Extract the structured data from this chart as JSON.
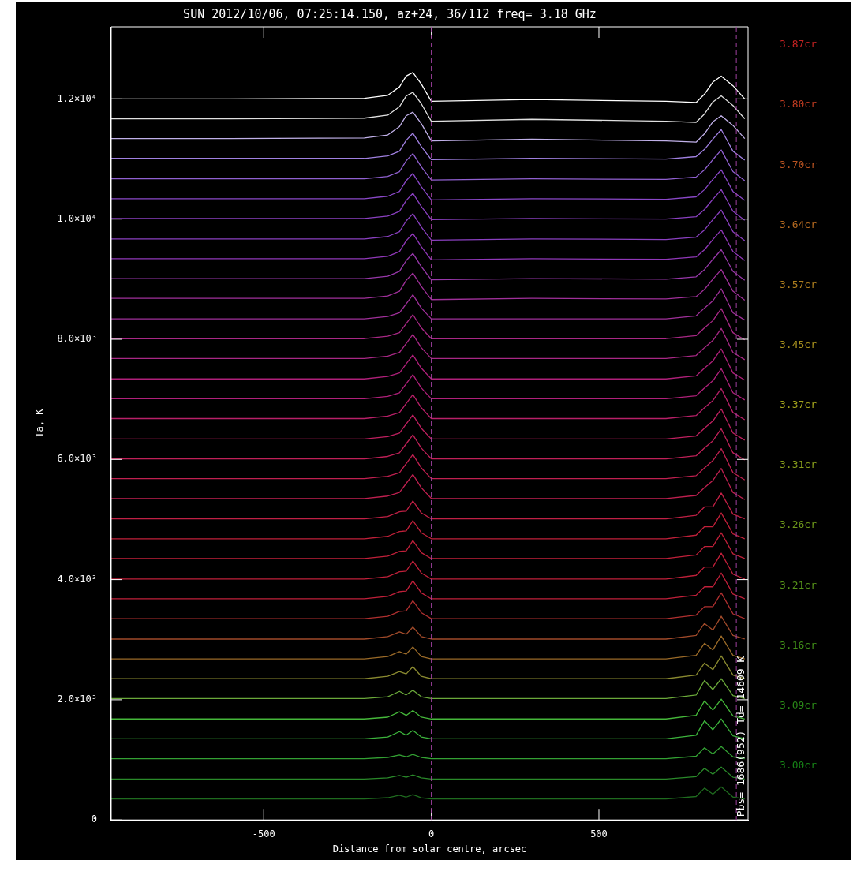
{
  "chart_data": {
    "type": "line",
    "title": "SUN 2012/10/06, 07:25:14.150, az+24, 36/112 freq= 3.18 GHz",
    "xlabel": "Distance from solar centre, arcsec",
    "ylabel": "Ta, K",
    "x": [
      -955,
      -600,
      -200,
      -130,
      -95,
      -75,
      -55,
      -30,
      0,
      300,
      700,
      790,
      815,
      840,
      865,
      900,
      935
    ],
    "xlim": [
      -955,
      945
    ],
    "xticks": [
      -500,
      0,
      500
    ],
    "ylim": [
      0,
      13200
    ],
    "yticks": [
      0,
      {
        "value": 2000,
        "label": "2.0×10³"
      },
      {
        "value": 4000,
        "label": "4.0×10³"
      },
      {
        "value": 6000,
        "label": "6.0×10³"
      },
      {
        "value": 8000,
        "label": "8.0×10³"
      },
      {
        "value": 10000,
        "label": "1.0×10⁴"
      },
      {
        "value": 12000,
        "label": "1.2×10⁴"
      }
    ],
    "grid": false,
    "legend": false,
    "marker": "none",
    "line_style": "solid",
    "ref_lines": [
      {
        "axis": "x",
        "value": 0,
        "color": "#a040a0",
        "line_style": "dashed"
      },
      {
        "axis": "x",
        "value": 910,
        "color": "#a040a0",
        "line_style": "dashed"
      }
    ],
    "annotations": [
      "3.87cr",
      "3.80cr",
      "3.70cr",
      "3.64cr",
      "3.57cr",
      "3.45cr",
      "3.37cr",
      "3.31cr",
      "3.26cr",
      "3.21cr",
      "3.16cr",
      "3.09cr",
      "3.00cr",
      "Pbs= 1686(952) Td= 14609 K"
    ],
    "series": [
      {
        "color": "#1f6b1f",
        "values": [
          350,
          350,
          350,
          370,
          410,
          380,
          420,
          370,
          350,
          350,
          350,
          390,
          530,
          430,
          550,
          380,
          350
        ]
      },
      {
        "color": "#2a8a2a",
        "values": [
          680,
          680,
          680,
          700,
          740,
          710,
          750,
          700,
          680,
          680,
          680,
          720,
          860,
          760,
          880,
          710,
          680
        ]
      },
      {
        "color": "#33a033",
        "values": [
          1020,
          1020,
          1020,
          1040,
          1080,
          1050,
          1090,
          1040,
          1020,
          1020,
          1020,
          1060,
          1200,
          1100,
          1220,
          1050,
          1020
        ]
      },
      {
        "color": "#3cb33c",
        "values": [
          1350,
          1350,
          1350,
          1380,
          1470,
          1410,
          1490,
          1380,
          1350,
          1350,
          1350,
          1410,
          1650,
          1500,
          1680,
          1400,
          1350
        ]
      },
      {
        "color": "#45b83a",
        "values": [
          1680,
          1680,
          1680,
          1710,
          1800,
          1740,
          1820,
          1710,
          1680,
          1680,
          1680,
          1740,
          1980,
          1830,
          2010,
          1730,
          1680
        ]
      },
      {
        "color": "#6aa83a",
        "values": [
          2020,
          2020,
          2020,
          2050,
          2140,
          2080,
          2160,
          2050,
          2020,
          2020,
          2020,
          2080,
          2320,
          2170,
          2350,
          2070,
          2020
        ]
      },
      {
        "color": "#8a8a30",
        "values": [
          2350,
          2350,
          2350,
          2390,
          2470,
          2430,
          2550,
          2390,
          2350,
          2350,
          2350,
          2410,
          2610,
          2500,
          2730,
          2410,
          2350
        ]
      },
      {
        "color": "#9a6a28",
        "values": [
          2680,
          2680,
          2680,
          2720,
          2800,
          2760,
          2880,
          2720,
          2680,
          2680,
          2680,
          2740,
          2940,
          2830,
          3060,
          2740,
          2680
        ]
      },
      {
        "color": "#a04a2a",
        "values": [
          3010,
          3010,
          3010,
          3050,
          3130,
          3090,
          3210,
          3050,
          3010,
          3010,
          3010,
          3070,
          3270,
          3160,
          3390,
          3070,
          3010
        ]
      },
      {
        "color": "#b03030",
        "values": [
          3350,
          3350,
          3350,
          3390,
          3470,
          3480,
          3650,
          3450,
          3350,
          3350,
          3350,
          3410,
          3550,
          3550,
          3780,
          3430,
          3350
        ]
      },
      {
        "color": "#c0203a",
        "values": [
          3680,
          3680,
          3680,
          3720,
          3800,
          3810,
          3980,
          3780,
          3680,
          3680,
          3680,
          3740,
          3880,
          3880,
          4110,
          3760,
          3680
        ]
      },
      {
        "color": "#c0203a",
        "values": [
          4010,
          4010,
          4010,
          4050,
          4130,
          4140,
          4310,
          4110,
          4010,
          4010,
          4010,
          4070,
          4210,
          4210,
          4440,
          4090,
          4010
        ]
      },
      {
        "color": "#c0203a",
        "values": [
          4350,
          4350,
          4350,
          4390,
          4470,
          4480,
          4650,
          4450,
          4350,
          4350,
          4350,
          4410,
          4550,
          4550,
          4780,
          4430,
          4350
        ]
      },
      {
        "color": "#c0203a",
        "values": [
          4680,
          4680,
          4680,
          4720,
          4800,
          4810,
          4980,
          4780,
          4680,
          4680,
          4680,
          4740,
          4880,
          4880,
          5110,
          4760,
          4680
        ]
      },
      {
        "color": "#c02045",
        "values": [
          5010,
          5010,
          5010,
          5050,
          5130,
          5140,
          5310,
          5110,
          5010,
          5010,
          5010,
          5070,
          5210,
          5210,
          5440,
          5090,
          5010
        ]
      },
      {
        "color": "#c02050",
        "values": [
          5350,
          5350,
          5350,
          5390,
          5450,
          5600,
          5750,
          5530,
          5350,
          5350,
          5350,
          5400,
          5530,
          5650,
          5850,
          5450,
          5330
        ]
      },
      {
        "color": "#c02050",
        "values": [
          5680,
          5680,
          5680,
          5720,
          5780,
          5930,
          6080,
          5860,
          5680,
          5680,
          5680,
          5730,
          5860,
          5980,
          6180,
          5780,
          5660
        ]
      },
      {
        "color": "#c02058",
        "values": [
          6010,
          6010,
          6010,
          6050,
          6110,
          6260,
          6410,
          6190,
          6010,
          6010,
          6010,
          6060,
          6190,
          6310,
          6510,
          6110,
          5990
        ]
      },
      {
        "color": "#c02060",
        "values": [
          6340,
          6340,
          6340,
          6380,
          6440,
          6590,
          6740,
          6520,
          6340,
          6340,
          6340,
          6390,
          6520,
          6640,
          6840,
          6440,
          6320
        ]
      },
      {
        "color": "#b82068",
        "values": [
          6680,
          6680,
          6680,
          6720,
          6780,
          6930,
          7080,
          6860,
          6680,
          6680,
          6680,
          6730,
          6860,
          6980,
          7180,
          6780,
          6660
        ]
      },
      {
        "color": "#b0207a",
        "values": [
          7010,
          7010,
          7010,
          7050,
          7110,
          7260,
          7410,
          7190,
          7010,
          7010,
          7010,
          7060,
          7190,
          7310,
          7510,
          7110,
          6990
        ]
      },
      {
        "color": "#b0207a",
        "values": [
          7340,
          7340,
          7340,
          7380,
          7440,
          7590,
          7740,
          7520,
          7340,
          7340,
          7340,
          7390,
          7520,
          7640,
          7840,
          7440,
          7320
        ]
      },
      {
        "color": "#a82885",
        "values": [
          7680,
          7680,
          7680,
          7720,
          7780,
          7930,
          8080,
          7860,
          7680,
          7680,
          7680,
          7730,
          7860,
          7980,
          8180,
          7780,
          7660
        ]
      },
      {
        "color": "#a82885",
        "values": [
          8010,
          8010,
          8010,
          8050,
          8110,
          8260,
          8410,
          8190,
          8010,
          8010,
          8010,
          8060,
          8190,
          8310,
          8510,
          8110,
          7990
        ]
      },
      {
        "color": "#a0309a",
        "values": [
          8340,
          8340,
          8340,
          8380,
          8440,
          8590,
          8740,
          8520,
          8340,
          8340,
          8340,
          8390,
          8520,
          8640,
          8840,
          8440,
          8320
        ]
      },
      {
        "color": "#a0309a",
        "values": [
          8680,
          8680,
          8680,
          8720,
          8800,
          8980,
          9100,
          8880,
          8660,
          8680,
          8670,
          8710,
          8830,
          9000,
          9160,
          8800,
          8650
        ]
      },
      {
        "color": "#9838aa",
        "values": [
          9010,
          9010,
          9010,
          9050,
          9130,
          9310,
          9430,
          9210,
          8990,
          9010,
          9000,
          9040,
          9160,
          9330,
          9490,
          9130,
          8980
        ]
      },
      {
        "color": "#9038b8",
        "values": [
          9340,
          9340,
          9340,
          9380,
          9460,
          9640,
          9760,
          9540,
          9320,
          9340,
          9330,
          9370,
          9490,
          9660,
          9820,
          9460,
          9310
        ]
      },
      {
        "color": "#8a40c0",
        "values": [
          9670,
          9670,
          9670,
          9710,
          9790,
          9970,
          10090,
          9870,
          9650,
          9670,
          9660,
          9700,
          9820,
          9990,
          10150,
          9790,
          9640
        ]
      },
      {
        "color": "#8a40c0",
        "values": [
          10010,
          10010,
          10010,
          10050,
          10130,
          10310,
          10430,
          10210,
          9990,
          10010,
          10000,
          10040,
          10160,
          10330,
          10490,
          10130,
          9980
        ]
      },
      {
        "color": "#8a48c8",
        "values": [
          10340,
          10340,
          10340,
          10380,
          10460,
          10640,
          10760,
          10540,
          10320,
          10340,
          10330,
          10370,
          10490,
          10660,
          10820,
          10460,
          10310
        ]
      },
      {
        "color": "#9060d0",
        "values": [
          10670,
          10670,
          10670,
          10710,
          10790,
          10970,
          11090,
          10870,
          10650,
          10670,
          10660,
          10700,
          10820,
          10990,
          11150,
          10790,
          10640
        ]
      },
      {
        "color": "#a080e0",
        "values": [
          11010,
          11010,
          11010,
          11050,
          11130,
          11310,
          11430,
          11210,
          10990,
          11010,
          11000,
          11040,
          11160,
          11330,
          11490,
          11130,
          10980
        ]
      },
      {
        "color": "#c0b0e8",
        "values": [
          11340,
          11340,
          11350,
          11400,
          11540,
          11720,
          11780,
          11590,
          11300,
          11330,
          11300,
          11280,
          11420,
          11620,
          11720,
          11560,
          11340
        ]
      },
      {
        "color": "#e0e0e0",
        "values": [
          11670,
          11670,
          11680,
          11730,
          11870,
          12050,
          12110,
          11920,
          11630,
          11660,
          11630,
          11610,
          11750,
          11950,
          12050,
          11890,
          11670
        ]
      },
      {
        "color": "#ffffff",
        "values": [
          12000,
          12000,
          12010,
          12060,
          12200,
          12380,
          12440,
          12250,
          11960,
          11990,
          11960,
          11940,
          12080,
          12280,
          12380,
          12220,
          12000
        ]
      }
    ]
  }
}
